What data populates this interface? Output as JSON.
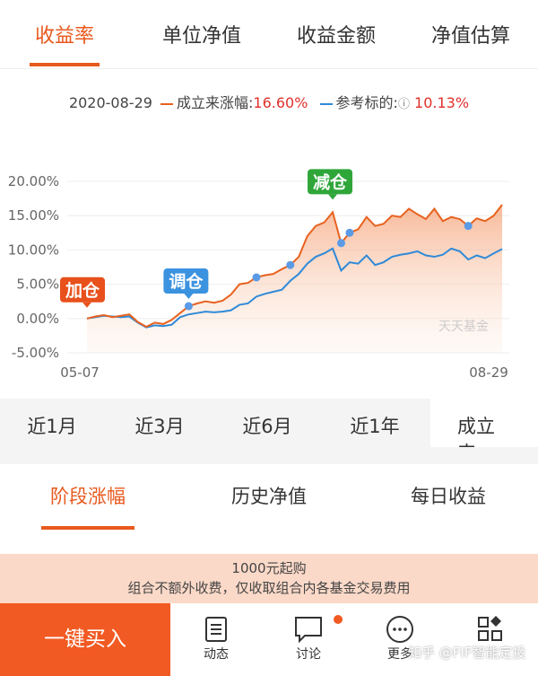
{
  "tabs": [
    "收益率",
    "单位净值",
    "收益金额",
    "净值估算"
  ],
  "chart_data": {
    "type": "line",
    "date": "2020-08-29",
    "legend_values": [
      "16.60%",
      "10.13%"
    ],
    "categories": [
      "05-07",
      null,
      null,
      null,
      null,
      null,
      null,
      null,
      null,
      null,
      null,
      null,
      null,
      null,
      null,
      null,
      null,
      null,
      null,
      null,
      null,
      null,
      null,
      null,
      null,
      null,
      null,
      null,
      null,
      null,
      null,
      null,
      null,
      null,
      null,
      null,
      null,
      null,
      null,
      null,
      null,
      null,
      null,
      null,
      null,
      null,
      null,
      null,
      null,
      "08-29"
    ],
    "series": [
      {
        "name": "成立来涨幅:",
        "color": "#e8621f",
        "values": [
          0,
          0.3,
          0.5,
          0.2,
          0.4,
          0.6,
          -0.5,
          -1.2,
          -0.6,
          -0.8,
          -0.2,
          0.8,
          1.8,
          2.2,
          2.5,
          2.3,
          2.6,
          3.5,
          5.0,
          5.2,
          6.0,
          6.3,
          6.5,
          7.2,
          7.8,
          9.0,
          12.0,
          13.5,
          14.0,
          15.5,
          11.0,
          12.5,
          13.0,
          14.8,
          13.5,
          13.8,
          15.0,
          14.8,
          16.0,
          15.2,
          14.5,
          16.0,
          14.2,
          14.8,
          14.5,
          13.5,
          14.6,
          14.2,
          15.0,
          16.6
        ]
      },
      {
        "name": "参考标的:",
        "color": "#2f8ad8",
        "values": [
          0,
          0.2,
          0.4,
          0.3,
          0.2,
          0.3,
          -0.6,
          -1.3,
          -1.0,
          -1.1,
          -0.9,
          0.2,
          0.6,
          0.8,
          1.0,
          0.9,
          1.0,
          1.2,
          2.0,
          2.2,
          3.2,
          3.6,
          3.9,
          4.2,
          5.5,
          6.5,
          8.0,
          9.0,
          9.5,
          10.2,
          7.0,
          8.2,
          8.0,
          9.2,
          7.8,
          8.2,
          9.0,
          9.3,
          9.5,
          9.8,
          9.2,
          9.0,
          9.3,
          10.2,
          9.8,
          8.6,
          9.2,
          8.8,
          9.5,
          10.13
        ]
      }
    ],
    "ylim": [
      -5,
      20
    ],
    "yticks": [
      {
        "value": 20,
        "label": "20.00%"
      },
      {
        "value": 15,
        "label": "15.00%"
      },
      {
        "value": 10,
        "label": "10.00%"
      },
      {
        "value": 5,
        "label": "5.00%"
      },
      {
        "value": 0,
        "label": "0.00%"
      },
      {
        "value": -5,
        "label": "-5.00%"
      }
    ],
    "grid": true,
    "annotations": [
      {
        "text": "加仓",
        "color": "#e8501c"
      },
      {
        "text": "调仓",
        "color": "#3b93e0"
      },
      {
        "text": "减仓",
        "color": "#2fa63a"
      }
    ],
    "watermark": "天天基金"
  },
  "periods": [
    "近1月",
    "近3月",
    "近6月",
    "近1年",
    "成立来"
  ],
  "subtabs": [
    "阶段涨幅",
    "历史净值",
    "每日收益"
  ],
  "banner": {
    "title": "1000元起购",
    "text": "组合不额外收费，仅收取组合内各基金交易费用"
  },
  "buy_button": "一键买入",
  "nav": [
    "动态",
    "讨论",
    "更多"
  ],
  "watermark": "知乎 @FIF智能定投"
}
